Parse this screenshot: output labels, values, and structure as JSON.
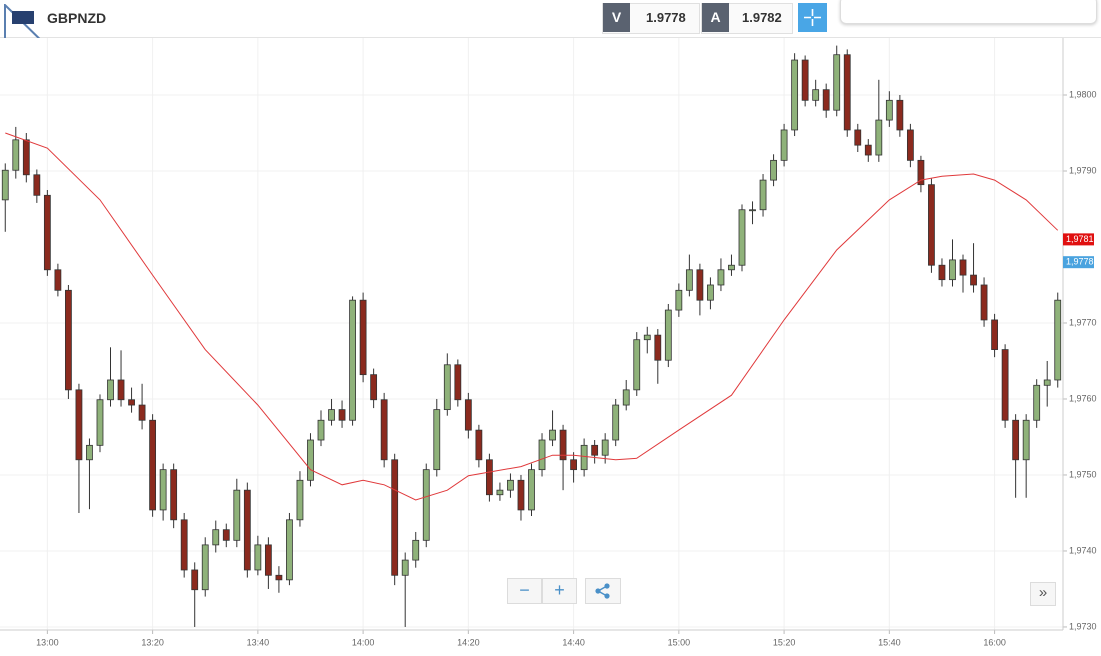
{
  "toolbar": {
    "symbol": "GBPNZD",
    "sell_label": "V",
    "sell_price": 1.9778,
    "buy_label": "A",
    "buy_price": 1.9782
  },
  "chart_data": {
    "type": "candlestick",
    "x": [
      "12:52",
      "12:54",
      "12:56",
      "12:58",
      "13:00",
      "13:02",
      "13:04",
      "13:06",
      "13:08",
      "13:10",
      "13:12",
      "13:14",
      "13:16",
      "13:18",
      "13:20",
      "13:22",
      "13:24",
      "13:26",
      "13:28",
      "13:30",
      "13:32",
      "13:34",
      "13:36",
      "13:38",
      "13:40",
      "13:42",
      "13:44",
      "13:46",
      "13:48",
      "13:50",
      "13:52",
      "13:54",
      "13:56",
      "13:58",
      "14:00",
      "14:02",
      "14:04",
      "14:06",
      "14:08",
      "14:10",
      "14:12",
      "14:14",
      "14:16",
      "14:18",
      "14:20",
      "14:22",
      "14:24",
      "14:26",
      "14:28",
      "14:30",
      "14:32",
      "14:34",
      "14:36",
      "14:38",
      "14:40",
      "14:42",
      "14:44",
      "14:46",
      "14:48",
      "14:50",
      "14:52",
      "14:54",
      "14:56",
      "14:58",
      "15:00",
      "15:02",
      "15:04",
      "15:06",
      "15:08",
      "15:10",
      "15:12",
      "15:14",
      "15:16",
      "15:18",
      "15:20",
      "15:22",
      "15:24",
      "15:26",
      "15:28",
      "15:30",
      "15:32",
      "15:34",
      "15:36",
      "15:38",
      "15:40",
      "15:42",
      "15:44",
      "15:46",
      "15:48",
      "15:50",
      "15:52",
      "15:54",
      "15:56",
      "15:58",
      "16:00",
      "16:02",
      "16:04",
      "16:06",
      "16:08",
      "16:10",
      "16:12"
    ],
    "open": [
      1.97862,
      1.97901,
      1.97941,
      1.97895,
      1.97868,
      1.9777,
      1.97743,
      1.97612,
      1.9752,
      1.97539,
      1.97599,
      1.97625,
      1.97599,
      1.97592,
      1.97572,
      1.97454,
      1.97507,
      1.97441,
      1.97375,
      1.97349,
      1.97408,
      1.97428,
      1.97414,
      1.9748,
      1.97375,
      1.97408,
      1.97368,
      1.97362,
      1.97441,
      1.97493,
      1.97546,
      1.97572,
      1.97586,
      1.97572,
      1.9773,
      1.97632,
      1.97599,
      1.9752,
      1.97368,
      1.97388,
      1.97414,
      1.97507,
      1.97586,
      1.97645,
      1.97599,
      1.97559,
      1.9752,
      1.97474,
      1.9748,
      1.97493,
      1.97454,
      1.97507,
      1.97546,
      1.97559,
      1.9752,
      1.97507,
      1.97539,
      1.97526,
      1.97546,
      1.97592,
      1.97612,
      1.97678,
      1.97684,
      1.97651,
      1.97717,
      1.97743,
      1.9777,
      1.9773,
      1.9775,
      1.9777,
      1.97776,
      1.97849,
      1.97849,
      1.97888,
      1.97914,
      1.97954,
      1.98046,
      1.97993,
      1.98007,
      1.9798,
      1.98053,
      1.97954,
      1.97934,
      1.97921,
      1.97967,
      1.97993,
      1.97954,
      1.97914,
      1.97882,
      1.97776,
      1.97757,
      1.97783,
      1.97763,
      1.9775,
      1.97704,
      1.97665,
      1.97572,
      1.9752,
      1.97572,
      1.97618,
      1.97625
    ],
    "high": [
      1.9791,
      1.97958,
      1.9795,
      1.97902,
      1.97875,
      1.97778,
      1.9775,
      1.9762,
      1.97548,
      1.97606,
      1.97668,
      1.97664,
      1.97615,
      1.9762,
      1.9758,
      1.97515,
      1.97515,
      1.9745,
      1.97385,
      1.97418,
      1.9744,
      1.97436,
      1.97495,
      1.9749,
      1.9742,
      1.97418,
      1.9738,
      1.9745,
      1.97505,
      1.97555,
      1.97585,
      1.976,
      1.97598,
      1.97735,
      1.9774,
      1.9764,
      1.97608,
      1.97528,
      1.97398,
      1.97425,
      1.97515,
      1.976,
      1.9766,
      1.97652,
      1.97608,
      1.97566,
      1.97528,
      1.9749,
      1.97502,
      1.975,
      1.97515,
      1.97555,
      1.97585,
      1.97566,
      1.9753,
      1.97548,
      1.97546,
      1.97555,
      1.976,
      1.97625,
      1.97688,
      1.97695,
      1.97692,
      1.97725,
      1.97752,
      1.9779,
      1.97778,
      1.9776,
      1.97785,
      1.9779,
      1.97856,
      1.9786,
      1.97896,
      1.97922,
      1.97962,
      1.98055,
      1.98052,
      1.9802,
      1.98015,
      1.98065,
      1.9806,
      1.97962,
      1.97942,
      1.9802,
      1.98005,
      1.98,
      1.97962,
      1.9792,
      1.9789,
      1.97785,
      1.9781,
      1.9779,
      1.97805,
      1.9776,
      1.97712,
      1.97672,
      1.9758,
      1.9758,
      1.97626,
      1.9765,
      1.9774
    ],
    "low": [
      1.9782,
      1.9789,
      1.97885,
      1.97858,
      1.97762,
      1.97735,
      1.976,
      1.9745,
      1.97455,
      1.9753,
      1.9759,
      1.9759,
      1.97582,
      1.9756,
      1.97445,
      1.9744,
      1.9743,
      1.97365,
      1.973,
      1.9734,
      1.97398,
      1.97405,
      1.97405,
      1.97365,
      1.97368,
      1.9735,
      1.97345,
      1.97355,
      1.97432,
      1.97485,
      1.97538,
      1.97565,
      1.97562,
      1.97565,
      1.97622,
      1.97588,
      1.9751,
      1.97355,
      1.973,
      1.97378,
      1.97405,
      1.97498,
      1.97578,
      1.9759,
      1.97548,
      1.9751,
      1.97465,
      1.97466,
      1.9747,
      1.9744,
      1.97446,
      1.97498,
      1.97538,
      1.9748,
      1.9749,
      1.97498,
      1.97515,
      1.97515,
      1.97538,
      1.97585,
      1.97604,
      1.9766,
      1.9762,
      1.97642,
      1.97708,
      1.97735,
      1.9771,
      1.97718,
      1.97742,
      1.97762,
      1.97768,
      1.9783,
      1.9784,
      1.9788,
      1.97906,
      1.97946,
      1.97985,
      1.97985,
      1.9797,
      1.97972,
      1.97945,
      1.97925,
      1.97912,
      1.97912,
      1.97958,
      1.97945,
      1.97905,
      1.97872,
      1.97766,
      1.97748,
      1.97748,
      1.9774,
      1.9774,
      1.97695,
      1.97655,
      1.97562,
      1.9747,
      1.9747,
      1.97562,
      1.9759,
      1.97615
    ],
    "close": [
      1.97901,
      1.97941,
      1.97895,
      1.97868,
      1.9777,
      1.97743,
      1.97612,
      1.9752,
      1.97539,
      1.97599,
      1.97625,
      1.97599,
      1.97592,
      1.97572,
      1.97454,
      1.97507,
      1.97441,
      1.97375,
      1.97349,
      1.97408,
      1.97428,
      1.97414,
      1.9748,
      1.97375,
      1.97408,
      1.97368,
      1.97362,
      1.97441,
      1.97493,
      1.97546,
      1.97572,
      1.97586,
      1.97572,
      1.9773,
      1.97632,
      1.97599,
      1.9752,
      1.97368,
      1.97388,
      1.97414,
      1.97507,
      1.97586,
      1.97645,
      1.97599,
      1.97559,
      1.9752,
      1.97474,
      1.9748,
      1.97493,
      1.97454,
      1.97507,
      1.97546,
      1.97559,
      1.9752,
      1.97507,
      1.97539,
      1.97526,
      1.97546,
      1.97592,
      1.97612,
      1.97678,
      1.97684,
      1.97651,
      1.97717,
      1.97743,
      1.9777,
      1.9773,
      1.9775,
      1.9777,
      1.97776,
      1.97849,
      1.97849,
      1.97888,
      1.97914,
      1.97954,
      1.98046,
      1.97993,
      1.98007,
      1.9798,
      1.98053,
      1.97954,
      1.97934,
      1.97921,
      1.97967,
      1.97993,
      1.97954,
      1.97914,
      1.97882,
      1.97776,
      1.97757,
      1.97783,
      1.97763,
      1.9775,
      1.97704,
      1.97665,
      1.97572,
      1.9752,
      1.97572,
      1.97618,
      1.97625,
      1.9773
    ],
    "up_color": "#8fb27a",
    "down_color": "#8b2a1e",
    "moving_average": {
      "color": "#e0393b",
      "x": [
        "12:52",
        "13:00",
        "13:10",
        "13:20",
        "13:30",
        "13:40",
        "13:50",
        "13:56",
        "14:00",
        "14:04",
        "14:10",
        "14:16",
        "14:20",
        "14:30",
        "14:36",
        "14:40",
        "14:48",
        "14:52",
        "15:00",
        "15:10",
        "15:20",
        "15:30",
        "15:40",
        "15:46",
        "15:50",
        "15:56",
        "16:00",
        "16:06",
        "16:12"
      ],
      "values": [
        1.9795,
        1.9793,
        1.97862,
        1.97763,
        1.97665,
        1.97592,
        1.97507,
        1.97487,
        1.97493,
        1.97487,
        1.97467,
        1.9748,
        1.97499,
        1.97511,
        1.97526,
        1.97526,
        1.9752,
        1.97522,
        1.97559,
        1.97605,
        1.97704,
        1.97796,
        1.97862,
        1.97888,
        1.97893,
        1.97896,
        1.97888,
        1.97862,
        1.97822
      ]
    },
    "xlim": [
      "12:51",
      "16:13"
    ],
    "xticks": [
      "13:00",
      "13:20",
      "13:40",
      "14:00",
      "14:20",
      "14:40",
      "15:00",
      "15:20",
      "15:40",
      "16:00"
    ],
    "ylim": [
      1.97296,
      1.98075
    ],
    "yticks": [
      {
        "value": 1.973,
        "label": "1,9730"
      },
      {
        "value": 1.974,
        "label": "1,9740"
      },
      {
        "value": 1.975,
        "label": "1,9750"
      },
      {
        "value": 1.976,
        "label": "1,9760"
      },
      {
        "value": 1.977,
        "label": "1,9770"
      },
      {
        "value": 1.979,
        "label": "1,9790"
      },
      {
        "value": 1.98,
        "label": "1,9800"
      }
    ],
    "grid": true,
    "price_markers": [
      {
        "value": 1.9781,
        "label": "1,9781",
        "color": "#e01010"
      },
      {
        "value": 1.9778,
        "label": "1,9778",
        "color": "#4aa3df"
      }
    ]
  }
}
